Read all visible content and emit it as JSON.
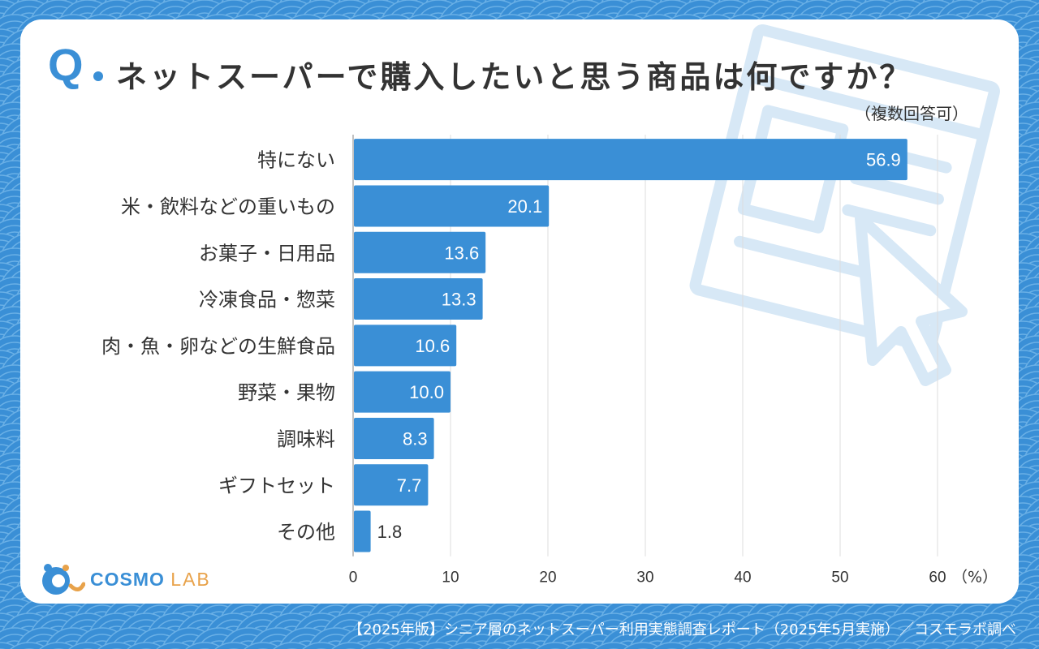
{
  "header": {
    "q_mark": "Q",
    "title": "ネットスーパーで購入したいと思う商品は何ですか？",
    "subtitle": "（複数回答可）"
  },
  "chart_data": {
    "type": "bar",
    "orientation": "horizontal",
    "categories": [
      "特にない",
      "米・飲料などの重いもの",
      "お菓子・日用品",
      "冷凍食品・惣菜",
      "肉・魚・卵などの生鮮食品",
      "野菜・果物",
      "調味料",
      "ギフトセット",
      "その他"
    ],
    "values": [
      56.9,
      20.1,
      13.6,
      13.3,
      10.6,
      10.0,
      8.3,
      7.7,
      1.8
    ],
    "value_labels": [
      "56.9",
      "20.1",
      "13.6",
      "13.3",
      "10.6",
      "10.0",
      "8.3",
      "7.7",
      "1.8"
    ],
    "xlim": [
      0,
      60
    ],
    "xticks": [
      "0",
      "10",
      "20",
      "30",
      "40",
      "50",
      "60"
    ],
    "xunit": "（%）",
    "grid": true,
    "bar_color": "#3a8fd6",
    "grid_color": "#dddddd"
  },
  "logo": {
    "main": "COSMO",
    "sub": "LAB"
  },
  "footer": {
    "source": "【2025年版】シニア層のネットスーパー利用実態調査レポート（2025年5月実施）／コスモラボ調べ"
  },
  "colors": {
    "accent": "#3a8fd6",
    "logo_orange": "#e8a24a",
    "text": "#333333"
  }
}
